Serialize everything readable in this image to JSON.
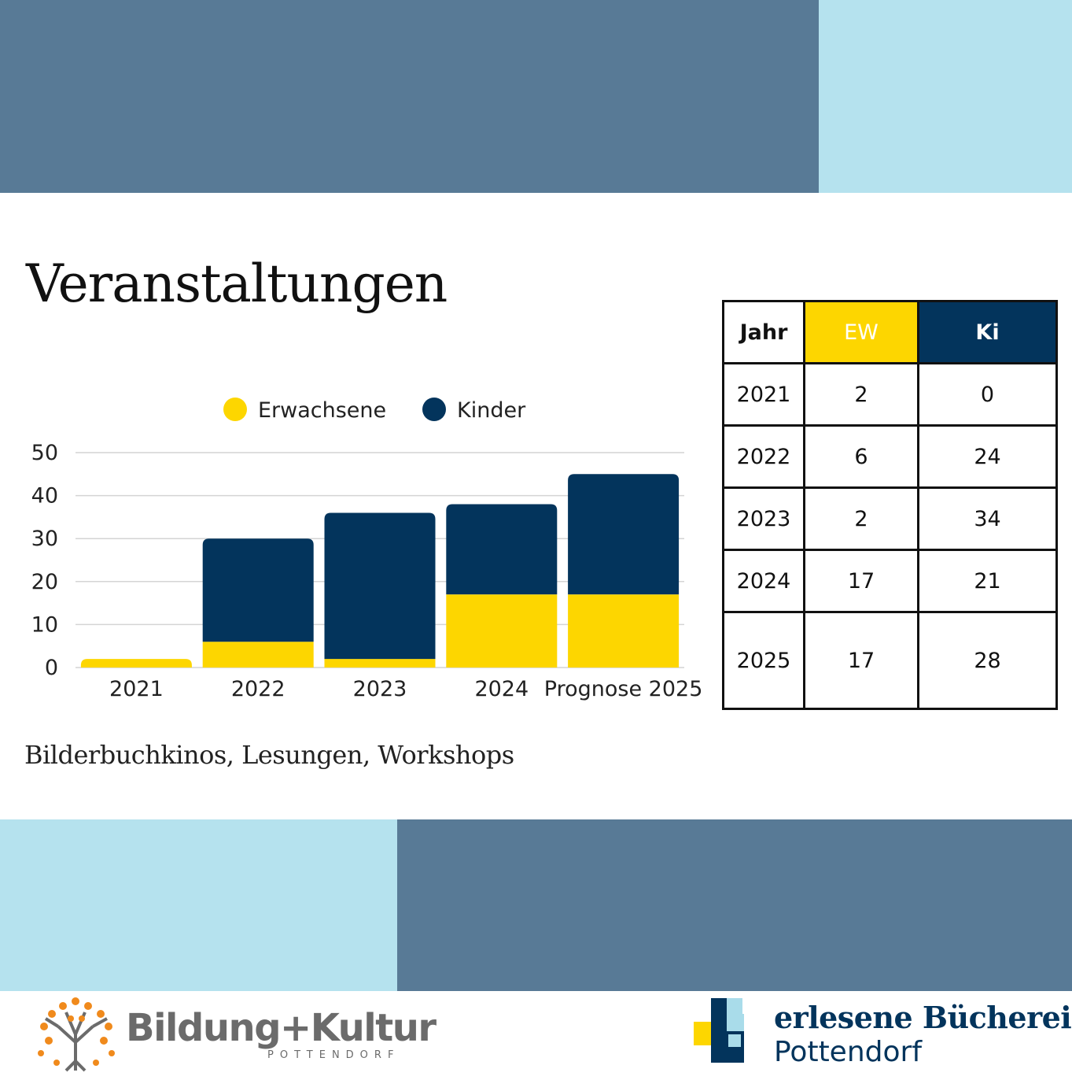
{
  "title": "Veranstaltungen",
  "subtitle": "Bilderbuchkinos, Lesungen, Workshops",
  "colors": {
    "erwachsene": "#fdd600",
    "kinder": "#03345c",
    "band_dark": "#587a96",
    "band_light": "#b5e2ee"
  },
  "chart_data": {
    "type": "bar",
    "stacked": true,
    "categories": [
      "2021",
      "2022",
      "2023",
      "2024",
      "Prognose 2025"
    ],
    "series": [
      {
        "name": "Erwachsene",
        "values": [
          2,
          6,
          2,
          17,
          17
        ]
      },
      {
        "name": "Kinder",
        "values": [
          0,
          24,
          34,
          21,
          28
        ]
      }
    ],
    "yticks": [
      "0",
      "10",
      "20",
      "30",
      "40",
      "50"
    ],
    "ylim": [
      0,
      50
    ],
    "grid": true,
    "legend": "top"
  },
  "table": {
    "headers": [
      "Jahr",
      "EW",
      "Ki"
    ],
    "rows": [
      [
        "2021",
        "2",
        "0"
      ],
      [
        "2022",
        "6",
        "24"
      ],
      [
        "2023",
        "2",
        "34"
      ],
      [
        "2024",
        "17",
        "21"
      ],
      [
        "2025",
        "17",
        "28"
      ]
    ]
  },
  "logos": {
    "left": {
      "name": "Bildung+Kultur",
      "sub": "POTTENDORF"
    },
    "right": {
      "line1": "erlesene Bücherei",
      "line2": "Pottendorf"
    }
  }
}
